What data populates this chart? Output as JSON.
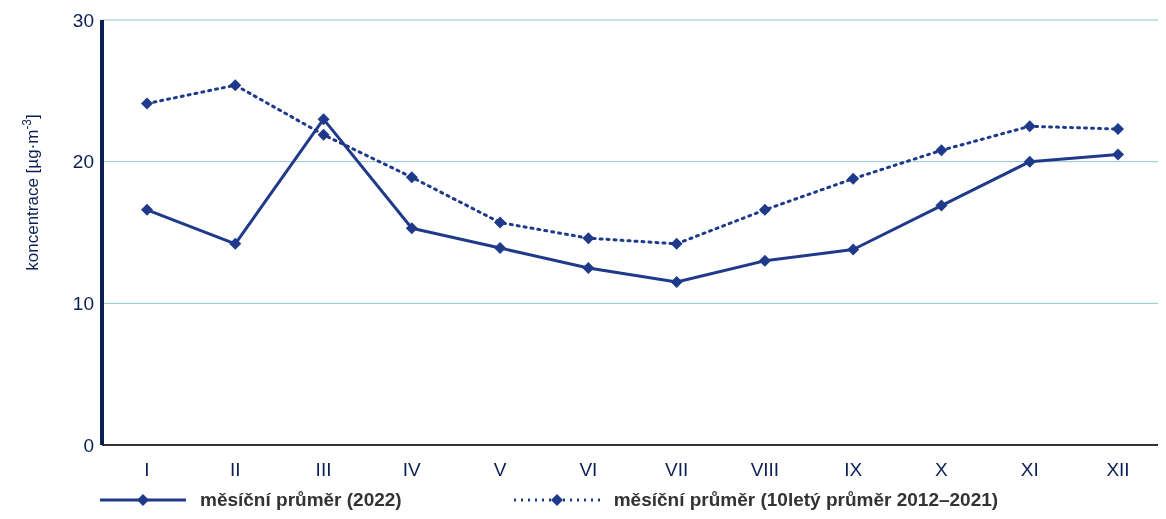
{
  "chart_data": {
    "type": "line",
    "ylabel": "koncentrace [µg·m$^{-3}$]",
    "categories": [
      "I",
      "II",
      "III",
      "IV",
      "V",
      "VI",
      "VII",
      "VIII",
      "IX",
      "X",
      "XI",
      "XII"
    ],
    "series": [
      {
        "name": "měsíční průměr (2022)",
        "color": "#1f3a8a",
        "line_style": "solid",
        "values": [
          16.6,
          14.2,
          23.0,
          15.3,
          13.9,
          12.5,
          11.5,
          13.0,
          13.8,
          16.9,
          20.0,
          20.5
        ]
      },
      {
        "name": "měsíční průměr (10letý průměr 2012–2021)",
        "color": "#1f3a8a",
        "line_style": "dotted",
        "values": [
          24.1,
          25.4,
          21.9,
          18.9,
          15.7,
          14.6,
          14.2,
          16.6,
          18.8,
          20.8,
          22.5,
          22.3
        ]
      }
    ],
    "ylim": [
      0,
      30
    ],
    "yticks": [
      0,
      10,
      20,
      30
    ],
    "grid": "y",
    "legend": "bottom",
    "marker": "diamond"
  }
}
